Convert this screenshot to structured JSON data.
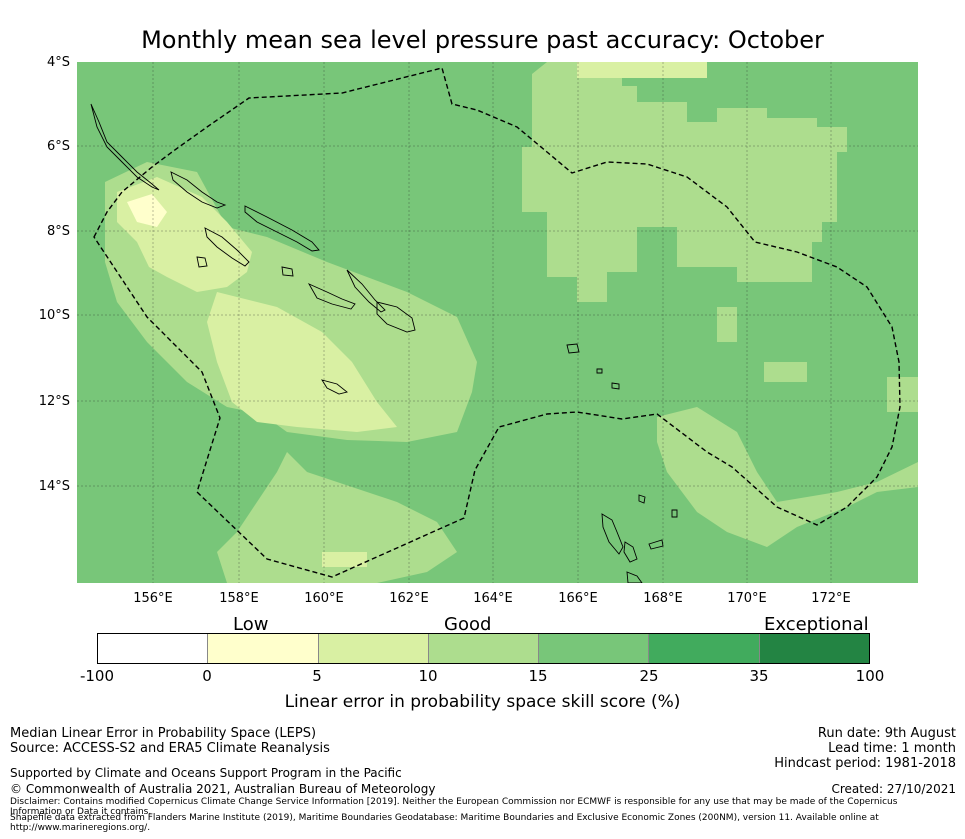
{
  "title": "Monthly mean sea level pressure past accuracy: October",
  "map": {
    "lat_labels": [
      "4°S",
      "6°S",
      "8°S",
      "10°S",
      "12°S",
      "14°S"
    ],
    "lon_labels": [
      "156°E",
      "158°E",
      "160°E",
      "162°E",
      "164°E",
      "166°E",
      "168°E",
      "170°E",
      "172°E"
    ],
    "colors": {
      "ocean_base": "#78c679",
      "good": "#addd8e",
      "low_good": "#d9f0a3",
      "low": "#ffffcc",
      "boundary": "#000000"
    }
  },
  "colorbar": {
    "categories": [
      "Low",
      "Good",
      "Exceptional"
    ],
    "ticks": [
      "-100",
      "0",
      "5",
      "10",
      "15",
      "25",
      "35",
      "100"
    ],
    "colors": [
      "#ffffff",
      "#ffffcc",
      "#d9f0a3",
      "#addd8e",
      "#78c679",
      "#41ab5d",
      "#238443"
    ],
    "label": "Linear error in probability space skill score (%)"
  },
  "footer": {
    "left1": "Median Linear Error in Probability Space (LEPS)",
    "left2": "Source: ACCESS-S2 and ERA5 Climate Reanalysis",
    "support": "Supported by Climate and Oceans Support Program in the Pacific",
    "copyright": "© Commonwealth of Australia 2021, Australian Bureau of Meteorology",
    "disclaimer": "Disclaimer: Contains modified Copernicus Climate Change Service Information [2019]. Neither the European Commission nor ECMWF is responsible for any use that may be made of the Copernicus Information or Data it contains.",
    "shapefile": "Shapefile data extracted from Flanders Marine Institute (2019), Maritime Boundaries Geodatabase: Maritime Boundaries and Exclusive Economic Zones (200NM), version 11. Available online at http://www.marineregions.org/.",
    "run_date": "Run date: 9th August",
    "lead_time": "Lead time: 1 month",
    "hindcast": "Hindcast period: 1981-2018",
    "created": "Created: 27/10/2021"
  }
}
